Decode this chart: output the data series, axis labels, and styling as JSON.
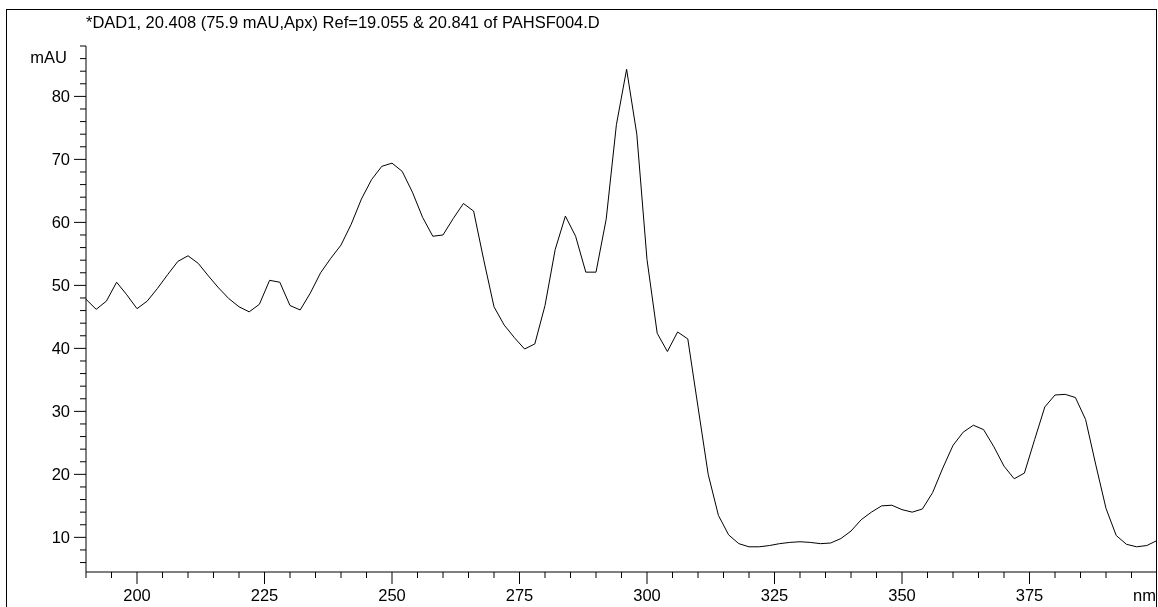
{
  "chart_data": {
    "type": "line",
    "title": "*DAD1, 20.408 (75.9 mAU,Apx) Ref=19.055 & 20.841 of PAHSF004.D",
    "xlabel": "nm",
    "ylabel": "mAU",
    "x": [
      190,
      192,
      194,
      196,
      198,
      200,
      202,
      204,
      206,
      208,
      210,
      212,
      214,
      216,
      218,
      220,
      222,
      224,
      226,
      228,
      230,
      232,
      234,
      236,
      238,
      240,
      242,
      244,
      246,
      248,
      250,
      252,
      254,
      256,
      258,
      260,
      262,
      264,
      266,
      268,
      270,
      272,
      274,
      276,
      278,
      280,
      282,
      284,
      286,
      288,
      290,
      292,
      294,
      296,
      298,
      300,
      302,
      304,
      306,
      308,
      310,
      312,
      314,
      316,
      318,
      320,
      322,
      324,
      326,
      328,
      330,
      332,
      334,
      336,
      338,
      340,
      342,
      344,
      346,
      348,
      350,
      352,
      354,
      356,
      358,
      360,
      362,
      364,
      366,
      368,
      370,
      372,
      374,
      376,
      378,
      380,
      382,
      384,
      386,
      388,
      390,
      392,
      394,
      396,
      398,
      400
    ],
    "series": [
      {
        "color": "#000000",
        "values": [
          47.8,
          46.2,
          47.5,
          50.5,
          48.5,
          46.3,
          47.5,
          49.5,
          51.7,
          53.8,
          54.7,
          53.5,
          51.5,
          49.6,
          47.9,
          46.6,
          45.8,
          47.0,
          50.8,
          50.5,
          46.8,
          46.1,
          48.8,
          52.0,
          54.3,
          56.4,
          59.7,
          63.7,
          66.8,
          68.9,
          69.4,
          68.1,
          64.8,
          60.8,
          57.8,
          58.0,
          60.6,
          63.0,
          61.8,
          54.0,
          46.6,
          43.7,
          41.7,
          39.9,
          40.7,
          46.8,
          55.7,
          61.0,
          57.8,
          52.1,
          52.1,
          60.5,
          75.5,
          84.3,
          74.0,
          54.1,
          42.4,
          39.5,
          42.6,
          41.5,
          30.7,
          20.0,
          13.5,
          10.4,
          9.0,
          8.5,
          8.5,
          8.7,
          9.0,
          9.2,
          9.3,
          9.2,
          9.0,
          9.1,
          9.8,
          11.0,
          12.8,
          14.0,
          15.0,
          15.1,
          14.4,
          14.0,
          14.5,
          17.1,
          21.0,
          24.6,
          26.7,
          27.8,
          27.1,
          24.4,
          21.3,
          19.3,
          20.2,
          25.5,
          30.7,
          32.6,
          32.7,
          32.2,
          28.7,
          21.5,
          14.6,
          10.3,
          8.9,
          8.5,
          8.7,
          9.5
        ]
      }
    ],
    "xlim": [
      190,
      400
    ],
    "ylim": [
      4.5,
      88
    ],
    "xticks": [
      {
        "value": 190,
        "label": null
      },
      {
        "value": 195,
        "label": null
      },
      200,
      {
        "value": 205,
        "label": null
      },
      {
        "value": 210,
        "label": null
      },
      {
        "value": 215,
        "label": null
      },
      {
        "value": 220,
        "label": null
      },
      225,
      {
        "value": 230,
        "label": null
      },
      {
        "value": 235,
        "label": null
      },
      {
        "value": 240,
        "label": null
      },
      {
        "value": 245,
        "label": null
      },
      250,
      {
        "value": 255,
        "label": null
      },
      {
        "value": 260,
        "label": null
      },
      {
        "value": 265,
        "label": null
      },
      {
        "value": 270,
        "label": null
      },
      275,
      {
        "value": 280,
        "label": null
      },
      {
        "value": 285,
        "label": null
      },
      {
        "value": 290,
        "label": null
      },
      {
        "value": 295,
        "label": null
      },
      300,
      {
        "value": 305,
        "label": null
      },
      {
        "value": 310,
        "label": null
      },
      {
        "value": 315,
        "label": null
      },
      {
        "value": 320,
        "label": null
      },
      325,
      {
        "value": 330,
        "label": null
      },
      {
        "value": 335,
        "label": null
      },
      {
        "value": 340,
        "label": null
      },
      {
        "value": 345,
        "label": null
      },
      350,
      {
        "value": 355,
        "label": null
      },
      {
        "value": 360,
        "label": null
      },
      {
        "value": 365,
        "label": null
      },
      {
        "value": 370,
        "label": null
      },
      375,
      {
        "value": 380,
        "label": null
      },
      {
        "value": 385,
        "label": null
      },
      {
        "value": 390,
        "label": null
      },
      {
        "value": 395,
        "label": null
      }
    ],
    "yticks": [
      {
        "value": 6,
        "label": null
      },
      {
        "value": 8,
        "label": null
      },
      10,
      {
        "value": 12,
        "label": null
      },
      {
        "value": 14,
        "label": null
      },
      {
        "value": 16,
        "label": null
      },
      {
        "value": 18,
        "label": null
      },
      20,
      {
        "value": 22,
        "label": null
      },
      {
        "value": 24,
        "label": null
      },
      {
        "value": 26,
        "label": null
      },
      {
        "value": 28,
        "label": null
      },
      30,
      {
        "value": 32,
        "label": null
      },
      {
        "value": 34,
        "label": null
      },
      {
        "value": 36,
        "label": null
      },
      {
        "value": 38,
        "label": null
      },
      40,
      {
        "value": 42,
        "label": null
      },
      {
        "value": 44,
        "label": null
      },
      {
        "value": 46,
        "label": null
      },
      {
        "value": 48,
        "label": null
      },
      50,
      {
        "value": 52,
        "label": null
      },
      {
        "value": 54,
        "label": null
      },
      {
        "value": 56,
        "label": null
      },
      {
        "value": 58,
        "label": null
      },
      60,
      {
        "value": 62,
        "label": null
      },
      {
        "value": 64,
        "label": null
      },
      {
        "value": 66,
        "label": null
      },
      {
        "value": 68,
        "label": null
      },
      70,
      {
        "value": 72,
        "label": null
      },
      {
        "value": 74,
        "label": null
      },
      {
        "value": 76,
        "label": null
      },
      {
        "value": 78,
        "label": null
      },
      80,
      {
        "value": 82,
        "label": null
      },
      {
        "value": 84,
        "label": null
      },
      {
        "value": 86,
        "label": null
      },
      {
        "value": 88,
        "label": null
      }
    ]
  }
}
